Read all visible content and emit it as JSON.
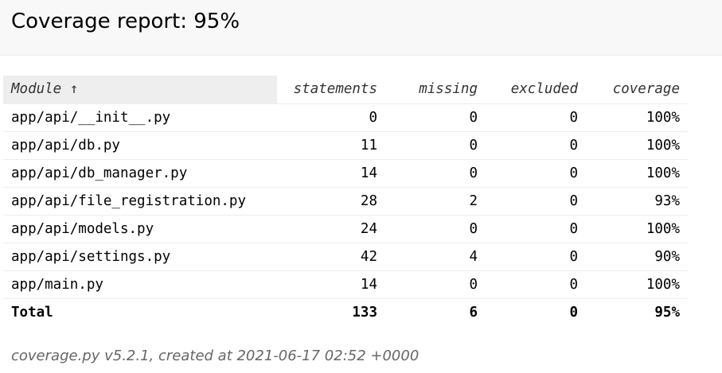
{
  "header": {
    "title": "Coverage report: 95%"
  },
  "table": {
    "columns": {
      "module": "Module ↑",
      "statements": "statements",
      "missing": "missing",
      "excluded": "excluded",
      "coverage": "coverage"
    },
    "rows": [
      {
        "module": "app/api/__init__.py",
        "statements": "0",
        "missing": "0",
        "excluded": "0",
        "coverage": "100%"
      },
      {
        "module": "app/api/db.py",
        "statements": "11",
        "missing": "0",
        "excluded": "0",
        "coverage": "100%"
      },
      {
        "module": "app/api/db_manager.py",
        "statements": "14",
        "missing": "0",
        "excluded": "0",
        "coverage": "100%"
      },
      {
        "module": "app/api/file_registration.py",
        "statements": "28",
        "missing": "2",
        "excluded": "0",
        "coverage": "93%"
      },
      {
        "module": "app/api/models.py",
        "statements": "24",
        "missing": "0",
        "excluded": "0",
        "coverage": "100%"
      },
      {
        "module": "app/api/settings.py",
        "statements": "42",
        "missing": "4",
        "excluded": "0",
        "coverage": "90%"
      },
      {
        "module": "app/main.py",
        "statements": "14",
        "missing": "0",
        "excluded": "0",
        "coverage": "100%"
      }
    ],
    "total": {
      "label": "Total",
      "statements": "133",
      "missing": "6",
      "excluded": "0",
      "coverage": "95%"
    }
  },
  "footer": {
    "text": "coverage.py v5.2.1, created at 2021-06-17 02:52 +0000"
  }
}
